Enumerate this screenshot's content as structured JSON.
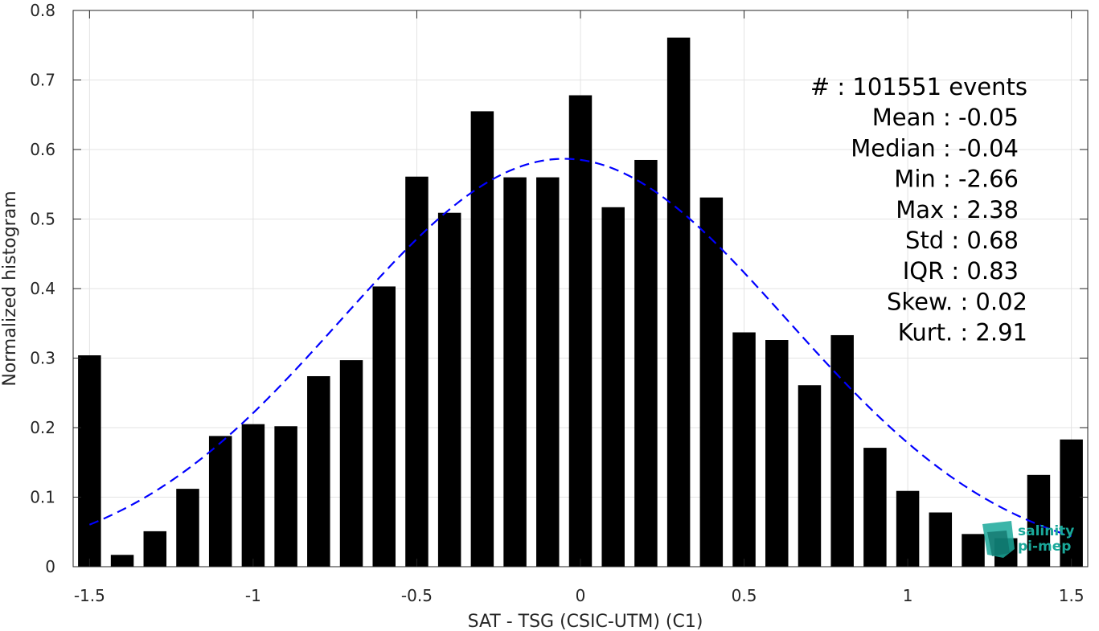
{
  "chart_data": {
    "type": "bar",
    "xlabel": "SAT - TSG (CSIC-UTM) (C1)",
    "ylabel": "Normalized histogram",
    "xlim": [
      -1.55,
      1.55
    ],
    "ylim": [
      0,
      0.8
    ],
    "xticks": [
      -1.5,
      -1,
      -0.5,
      0,
      0.5,
      1,
      1.5
    ],
    "xtick_labels": [
      "-1.5",
      "-1",
      "-0.5",
      "0",
      "0.5",
      "1",
      "1.5"
    ],
    "yticks": [
      0,
      0.1,
      0.2,
      0.3,
      0.4,
      0.5,
      0.6,
      0.7,
      0.8
    ],
    "ytick_labels": [
      "0",
      "0.1",
      "0.2",
      "0.3",
      "0.4",
      "0.5",
      "0.6",
      "0.7",
      "0.8"
    ],
    "grid": true,
    "bar_color": "#000000",
    "fit_color": "#0000ff",
    "bins": [
      -1.5,
      -1.4,
      -1.3,
      -1.2,
      -1.1,
      -1.0,
      -0.9,
      -0.8,
      -0.7,
      -0.6,
      -0.5,
      -0.4,
      -0.3,
      -0.2,
      -0.1,
      0.0,
      0.1,
      0.2,
      0.3,
      0.4,
      0.5,
      0.6,
      0.7,
      0.8,
      0.9,
      1.0,
      1.1,
      1.2,
      1.3,
      1.4,
      1.5
    ],
    "values": [
      0.304,
      0.017,
      0.051,
      0.112,
      0.188,
      0.205,
      0.202,
      0.274,
      0.297,
      0.403,
      0.561,
      0.509,
      0.655,
      0.56,
      0.56,
      0.678,
      0.517,
      0.585,
      0.761,
      0.531,
      0.337,
      0.326,
      0.261,
      0.333,
      0.171,
      0.109,
      0.078,
      0.047,
      0.041,
      0.132,
      0.183
    ],
    "fit": {
      "type": "normal",
      "mean": -0.05,
      "std": 0.68,
      "x_range": [
        -1.5,
        1.5
      ]
    },
    "stats": [
      {
        "label": "#  ",
        "value": ": 101551 events"
      },
      {
        "label": "Mean",
        "value": ": -0.05"
      },
      {
        "label": "Median",
        "value": ": -0.04"
      },
      {
        "label": "Min",
        "value": ": -2.66"
      },
      {
        "label": "Max",
        "value": ": 2.38"
      },
      {
        "label": "Std",
        "value": ": 0.68"
      },
      {
        "label": "IQR",
        "value": ": 0.83"
      },
      {
        "label": "Skew.",
        "value": ": 0.02"
      },
      {
        "label": "Kurt.",
        "value": ": 2.91"
      }
    ]
  },
  "stats_lines": [
    "#  : 101551 events",
    "Mean : -0.05",
    "Median : -0.04",
    "Min : -2.66",
    "Max : 2.38",
    "Std : 0.68",
    "IQR : 0.83",
    "Skew. : 0.02",
    "Kurt. : 2.91"
  ],
  "logo": {
    "line1": "salinity",
    "line2": "pi-mep",
    "color": "#1aa89a"
  }
}
